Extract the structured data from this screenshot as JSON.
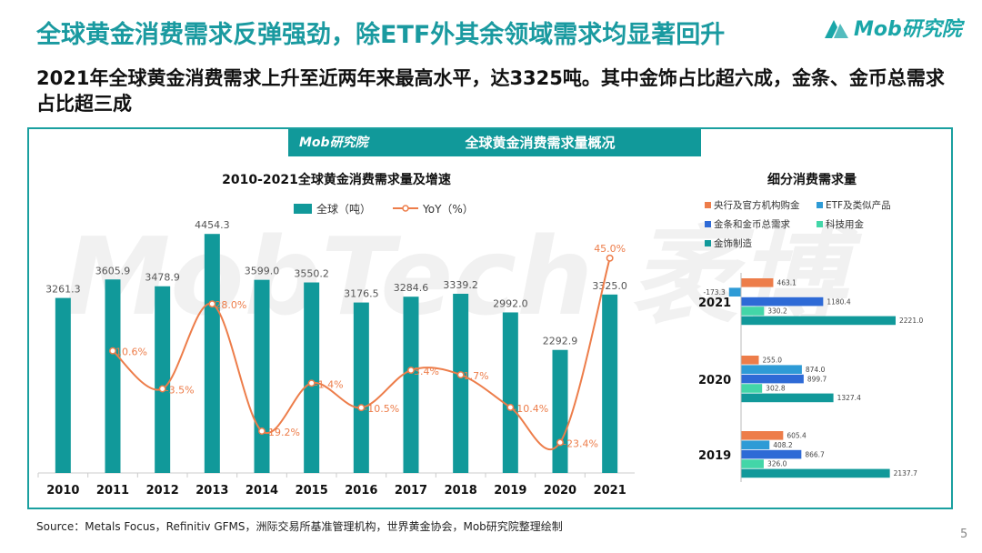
{
  "title": "全球黄金消费需求反弹强劲，除ETF外其余领域需求均显著回升",
  "subtitle": "2021年全球黄金消费需求上升至近两年来最高水平，达3325吨。其中金饰占比超六成，金条、金币总需求占比超三成",
  "logo": {
    "text": "Mob研究院"
  },
  "panel": {
    "title": "全球黄金消费需求量概况",
    "logo_text": "Mob研究院"
  },
  "watermark": "MobTech 袤博",
  "source": "Source：Metals Focus，Refinitiv GFMS，洲际交易所基准管理机构，世界黄金协会，Mob研究院整理绘制",
  "page_number": "5",
  "colors": {
    "teal": "#11999a",
    "orange": "#ed7d4a",
    "blue": "#2e75d6",
    "mint": "#43d6a8"
  },
  "chart_data": [
    {
      "type": "bar",
      "title": "2010-2021全球黄金消费需求量及增速",
      "categories": [
        "2010",
        "2011",
        "2012",
        "2013",
        "2014",
        "2015",
        "2016",
        "2017",
        "2018",
        "2019",
        "2020",
        "2021"
      ],
      "series": [
        {
          "name": "全球（吨）",
          "type": "bar",
          "color": "#11999a",
          "values": [
            3261.3,
            3605.9,
            3478.9,
            4454.3,
            3599.0,
            3550.2,
            3176.5,
            3284.6,
            3339.2,
            2992.0,
            2292.9,
            3325.0
          ],
          "labels": [
            "3261.3",
            "3605.9",
            "3478.9",
            "4454.3",
            "3599.0",
            "3550.2",
            "3176.5",
            "3284.6",
            "3339.2",
            "2992.0",
            "2292.9",
            "3325.0"
          ]
        },
        {
          "name": "YoY（%）",
          "type": "line",
          "color": "#ed7d4a",
          "values": [
            null,
            10.6,
            -3.5,
            28.0,
            -19.2,
            -1.4,
            -10.5,
            3.4,
            1.7,
            -10.4,
            -23.4,
            45.0
          ],
          "labels": [
            "",
            "10.6%",
            "-3.5%",
            "28.0%",
            "-19.2%",
            "-1.4%",
            "-10.5%",
            "3.4%",
            "1.7%",
            "-10.4%",
            "-23.4%",
            "45.0%"
          ]
        }
      ],
      "ylim": [
        0,
        5000
      ],
      "y2lim": [
        -30,
        50
      ],
      "legend": "top"
    },
    {
      "type": "bar",
      "orientation": "horizontal",
      "title": "细分消费需求量",
      "categories": [
        "2021",
        "2020",
        "2019"
      ],
      "series": [
        {
          "name": "央行及官方机构购金",
          "color": "#ed7d4a",
          "values": [
            463.1,
            255.0,
            605.4
          ],
          "labels": [
            "463.1",
            "255.0",
            "605.4"
          ]
        },
        {
          "name": "ETF及类似产品",
          "color": "#2e9bd6",
          "values": [
            -173.3,
            874.0,
            408.2
          ],
          "labels": [
            "-173.3",
            "874.0",
            "408.2"
          ]
        },
        {
          "name": "金条和金币总需求",
          "color": "#2e6ad6",
          "values": [
            1180.4,
            899.7,
            866.7
          ],
          "labels": [
            "1180.4",
            "899.7",
            "866.7"
          ]
        },
        {
          "name": "科技用金",
          "color": "#43d6a8",
          "values": [
            330.2,
            302.8,
            326.0
          ],
          "labels": [
            "330.2",
            "302.8",
            "326.0"
          ]
        },
        {
          "name": "金饰制造",
          "color": "#11999a",
          "values": [
            2221.0,
            1327.4,
            2137.7
          ],
          "labels": [
            "2221.0",
            "1327.4",
            "2137.7"
          ]
        }
      ],
      "legend": "top"
    }
  ]
}
